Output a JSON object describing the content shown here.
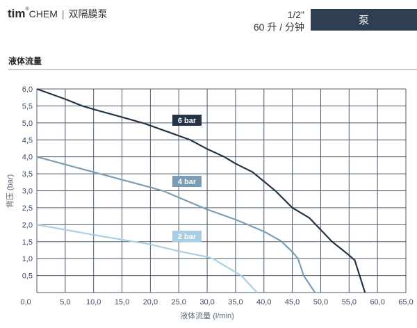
{
  "header": {
    "brand_mark": "tim",
    "brand_name": "CHEM",
    "product": "双隔膜泵",
    "size": "1/2\"",
    "capacity": "60 升 / 分钟",
    "category_button": "泵"
  },
  "section_title": "液体流量",
  "chart_data": {
    "type": "line",
    "title": "",
    "xlabel": "液体流量 (l/min)",
    "ylabel": "背压 (bar)",
    "xlim": [
      0,
      65
    ],
    "ylim": [
      0,
      6
    ],
    "xticks": [
      "0,0",
      "5,0",
      "10,0",
      "15,0",
      "20,0",
      "25,0",
      "30,0",
      "35,0",
      "40,0",
      "45,0",
      "50,0",
      "55,0",
      "60,0",
      "65,0"
    ],
    "yticks": [
      "0,5",
      "1,0",
      "1,5",
      "2,0",
      "2,5",
      "3,0",
      "3,5",
      "4,0",
      "4,5",
      "5,0",
      "5,5",
      "6,0"
    ],
    "grid": true,
    "series": [
      {
        "name": "6 bar",
        "color": "#253447",
        "x": [
          0,
          5,
          8,
          10,
          15,
          19,
          25,
          27,
          30,
          33,
          35,
          38,
          42,
          45,
          48,
          52,
          55,
          56,
          57.8
        ],
        "y": [
          6,
          5.7,
          5.5,
          5.4,
          5.17,
          4.98,
          4.62,
          4.5,
          4.23,
          4.0,
          3.8,
          3.55,
          3.0,
          2.5,
          2.2,
          1.5,
          1.1,
          0.95,
          0
        ]
      },
      {
        "name": "4 bar",
        "color": "#7a9db5",
        "x": [
          0,
          10,
          20,
          22.5,
          25,
          30,
          35,
          40,
          43,
          45,
          46,
          47,
          49
        ],
        "y": [
          4,
          3.55,
          3.1,
          2.98,
          2.8,
          2.45,
          2.15,
          1.8,
          1.52,
          1.2,
          1.0,
          0.5,
          0
        ]
      },
      {
        "name": "2 bar",
        "color": "#a9cfe6",
        "x": [
          0,
          10,
          20,
          25,
          30,
          31,
          33,
          36,
          38.8
        ],
        "y": [
          2,
          1.7,
          1.42,
          1.22,
          1.05,
          1.0,
          0.8,
          0.5,
          0
        ]
      }
    ]
  }
}
